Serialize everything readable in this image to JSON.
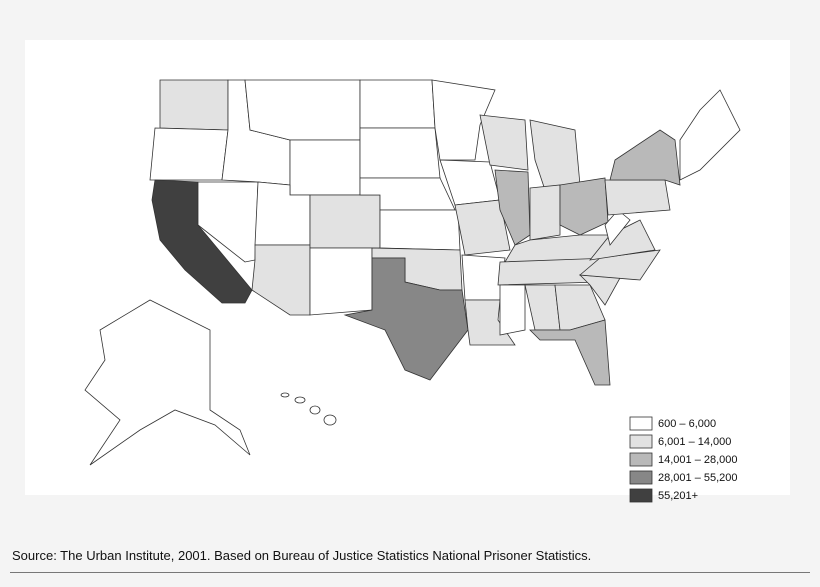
{
  "legend": {
    "items": [
      {
        "label": "600 – 6,000",
        "color": "#ffffff"
      },
      {
        "label": "6,001 – 14,000",
        "color": "#e2e2e2"
      },
      {
        "label": "14,001 – 28,000",
        "color": "#b9b9b9"
      },
      {
        "label": "28,001 – 55,200",
        "color": "#878787"
      },
      {
        "label": "55,201+",
        "color": "#404040"
      }
    ]
  },
  "source": "Source: The Urban Institute, 2001. Based on Bureau of Justice Statistics National Prisoner Statistics."
}
